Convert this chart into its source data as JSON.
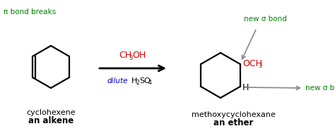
{
  "bg_color": "#ffffff",
  "green_color": "#008000",
  "red_color": "#cc0000",
  "blue_color": "#0000cc",
  "black_color": "#000000",
  "gray_color": "#888888",
  "pi_bond_text": "π bond breaks",
  "new_sigma_top": "new σ bond",
  "new_sigma_bottom": "new σ bond",
  "dilute": "dilute",
  "reactant_name": "cyclohexene",
  "reactant_type": "an alkene",
  "product_name": "methoxycyclohexane",
  "product_type": "an ether",
  "h_label": "H",
  "figw": 4.74,
  "figh": 1.96,
  "dpi": 100
}
